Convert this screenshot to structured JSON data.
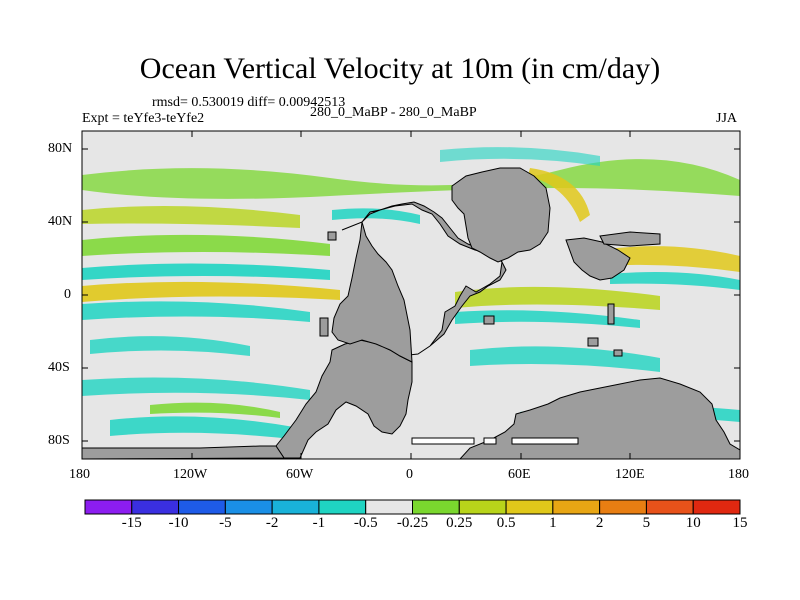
{
  "title": "Ocean Vertical Velocity at 10m (in cm/day)",
  "stats": "rmsd= 0.530019 diff= 0.00942513",
  "experiment": "Expt = teYfe3-teYfe2",
  "case": "280_0_MaBP - 280_0_MaBP",
  "season": "JJA",
  "lat_labels": [
    "80N",
    "40N",
    "0",
    "40S",
    "80S"
  ],
  "lon_labels": [
    "180",
    "120W",
    "60W",
    "0",
    "60E",
    "120E",
    "180"
  ],
  "colorbar": {
    "labels": [
      "-15",
      "-10",
      "-5",
      "-2",
      "-1",
      "-0.5",
      "-0.25",
      "0.25",
      "0.5",
      "1",
      "2",
      "5",
      "10",
      "15"
    ],
    "colors": [
      "#8c1df0",
      "#3a2fe0",
      "#1e5be8",
      "#1a8fe6",
      "#19b2d9",
      "#1fd4c2",
      "#e6e6e6",
      "#7ad72e",
      "#b8d41a",
      "#e0c81a",
      "#e8a614",
      "#e87e12",
      "#e8521a",
      "#e02810"
    ]
  },
  "colors": {
    "land": "#9d9d9d",
    "ocean": "#e6e6e6"
  }
}
